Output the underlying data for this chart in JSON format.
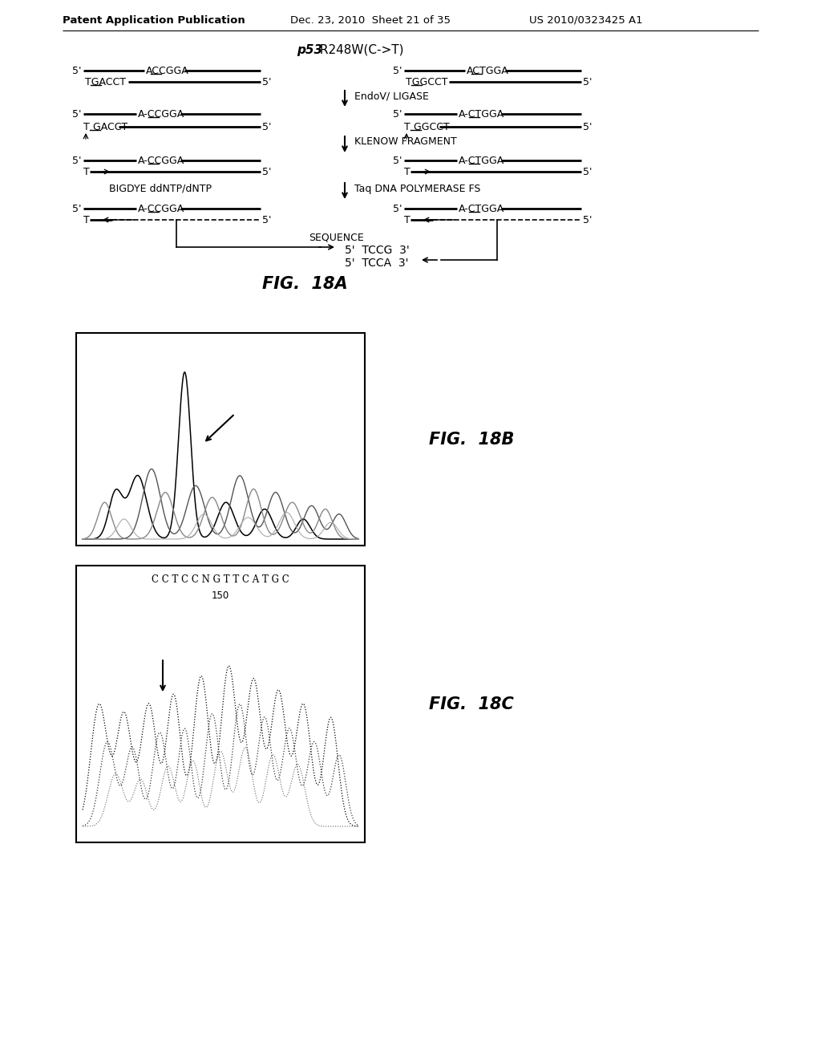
{
  "header_left": "Patent Application Publication",
  "header_center": "Dec. 23, 2010  Sheet 21 of 35",
  "header_right": "US 2010/0323425 A1",
  "title_italic": "p53",
  "title_rest": " R248W(C->T)",
  "fig18a_label": "FIG.  18A",
  "fig18b_label": "FIG.  18B",
  "fig18c_label": "FIG.  18C",
  "bg_color": "#ffffff"
}
